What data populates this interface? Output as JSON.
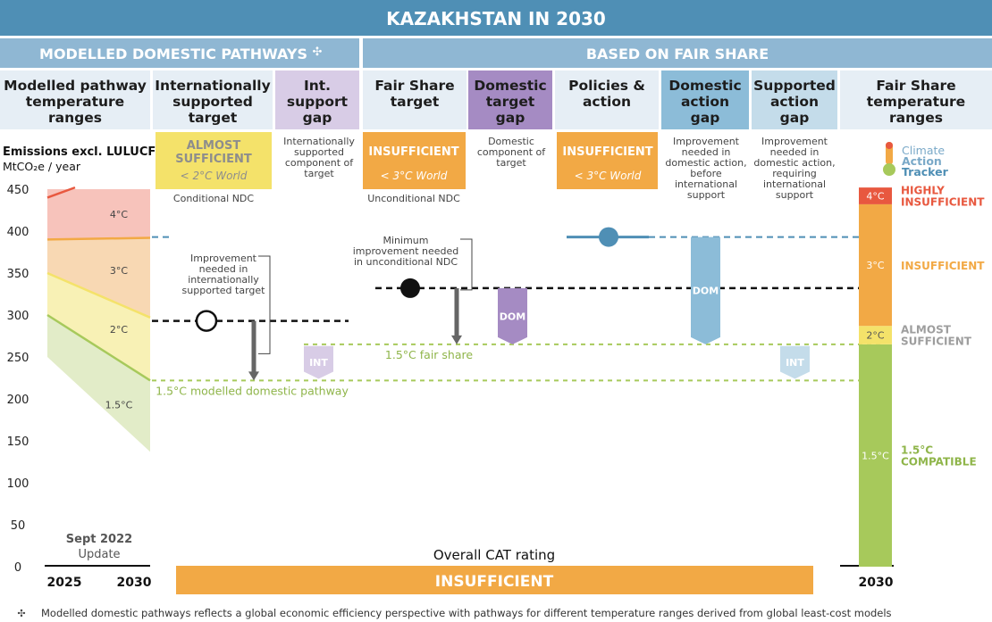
{
  "header": {
    "title": "KAZAKHSTAN IN 2030",
    "left_section": "MODELLED DOMESTIC PATHWAYS",
    "left_section_mark": "✣",
    "right_section": "BASED ON FAIR SHARE"
  },
  "columns": {
    "modelled_ranges": [
      "Modelled pathway",
      "temperature",
      "ranges"
    ],
    "int_supported": [
      "Internationally",
      "supported",
      "target"
    ],
    "int_gap": [
      "Int.",
      "support",
      "gap"
    ],
    "fair_share_target": [
      "Fair Share",
      "target"
    ],
    "domestic_gap": [
      "Domestic",
      "target",
      "gap"
    ],
    "policies": [
      "Policies &",
      "action"
    ],
    "domestic_action_gap": [
      "Domestic",
      "action",
      "gap"
    ],
    "supported_action_gap": [
      "Supported",
      "action",
      "gap"
    ],
    "fair_share_ranges": [
      "Fair Share",
      "temperature",
      "ranges"
    ]
  },
  "ratings": {
    "int_supported": {
      "label": "ALMOST",
      "label2": "SUFFICIENT",
      "world": "< 2°C World",
      "caption": "Conditional NDC"
    },
    "fair_share_target": {
      "label": "INSUFFICIENT",
      "world": "< 3°C World",
      "caption": "Unconditional NDC"
    },
    "policies": {
      "label": "INSUFFICIENT",
      "world": "< 3°C World"
    }
  },
  "descriptions": {
    "int_gap": [
      "Internationally",
      "supported",
      "component of",
      "target"
    ],
    "domestic_gap": [
      "Domestic",
      "component of",
      "target"
    ],
    "domestic_action_gap": [
      "Improvement",
      "needed in",
      "domestic action,",
      "before",
      "international",
      "support"
    ],
    "supported_action_gap": [
      "Improvement",
      "needed in",
      "domestic action,",
      "requiring",
      "international",
      "support"
    ]
  },
  "annotations": {
    "improvement_int": [
      "Improvement",
      "needed in",
      "internationally",
      "supported target"
    ],
    "min_improvement": [
      "Minimum",
      "improvement needed",
      "in unconditional NDC"
    ],
    "fair_share_line": "1.5°C fair share",
    "modelled_line": "1.5°C modelled domestic pathway",
    "int_tag": "INT",
    "dom_tag": "DOM"
  },
  "axis": {
    "ylabel": "Emissions excl. LULUCF",
    "yunit": "MtCO₂e / year",
    "update": "Sept 2022",
    "update2": "Update",
    "x_start": "2025",
    "x_end": "2030",
    "x_right": "2030"
  },
  "overall": {
    "label": "Overall CAT rating",
    "value": "INSUFFICIENT"
  },
  "logo": {
    "line1": "Climate",
    "line2": "Action",
    "line3": "Tracker"
  },
  "footnote": {
    "mark": "✣",
    "text": "Modelled domestic pathways reflects a global economic efficiency perspective with pathways for different temperature ranges derived from global least-cost models"
  },
  "colors": {
    "header_dark": "#4f8fb5",
    "header_light": "#8fb7d3",
    "rating_orange": "#f2a945",
    "rating_yellow": "#f4e26a",
    "purple": "#a58bc3",
    "blue": "#8cbcd8",
    "green": "#a7c95b",
    "red": "#e8583f"
  },
  "chart_data": {
    "type": "range-bar",
    "ylim": [
      0,
      450
    ],
    "yticks": [
      0,
      50,
      100,
      150,
      200,
      250,
      300,
      350,
      400,
      450
    ],
    "modelled_pathways": {
      "x": [
        2025,
        2030
      ],
      "boundaries": [
        {
          "name": "4°C top",
          "values": [
            450,
            450
          ]
        },
        {
          "name": "3°C/4°C",
          "values": [
            390,
            392
          ]
        },
        {
          "name": "2°C/3°C",
          "values": [
            350,
            297
          ]
        },
        {
          "name": "1.5°C/2°C",
          "values": [
            300,
            222
          ]
        },
        {
          "name": "1.5°C bottom",
          "values": [
            250,
            137
          ]
        }
      ],
      "band_labels": [
        {
          "label": "4°C",
          "value": 420
        },
        {
          "label": "3°C",
          "value": 353
        },
        {
          "label": "2°C",
          "value": 283
        },
        {
          "label": "1.5°C",
          "value": 193
        }
      ]
    },
    "levels": {
      "int_supported_target": 293,
      "unconditional_ndc": 332,
      "policies": 393,
      "fair_share_1_5": 265,
      "modelled_1_5": 222
    },
    "fair_share_ranges": [
      {
        "label": "1.5°C",
        "rating": "1.5°C",
        "rating2": "COMPATIBLE",
        "from": 0,
        "to": 265,
        "color": "#a7c95b"
      },
      {
        "label": "2°C",
        "rating": "ALMOST",
        "rating2": "SUFFICIENT",
        "from": 265,
        "to": 287,
        "color": "#f4e26a"
      },
      {
        "label": "3°C",
        "rating": "INSUFFICIENT",
        "rating2": "",
        "from": 287,
        "to": 432,
        "color": "#f2a945"
      },
      {
        "label": "4°C",
        "rating": "HIGHLY",
        "rating2": "INSUFFICIENT",
        "from": 432,
        "to": 452,
        "color": "#e8583f"
      }
    ]
  }
}
